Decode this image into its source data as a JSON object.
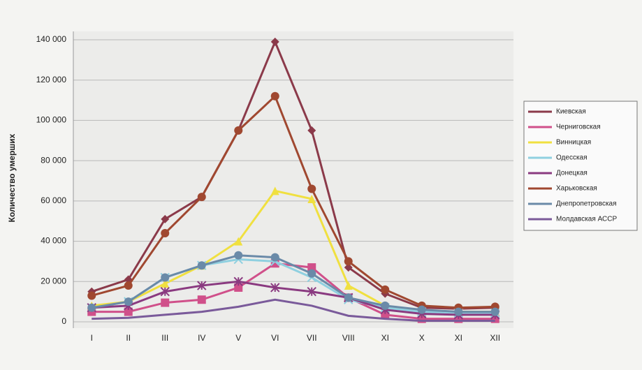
{
  "chart_data": {
    "type": "line",
    "y_label": "Количество умерших",
    "categories": [
      "I",
      "II",
      "III",
      "IV",
      "V",
      "VI",
      "VII",
      "VIII",
      "XI",
      "X",
      "XI",
      "XII"
    ],
    "ylim": [
      0,
      140000
    ],
    "yticks": [
      0,
      {
        "value": 20000,
        "label": "20 000"
      },
      {
        "value": 40000,
        "label": "40 000"
      },
      {
        "value": 60000,
        "label": "60 000"
      },
      {
        "value": 80000,
        "label": "80 000"
      },
      {
        "value": 100000,
        "label": "100 000"
      },
      {
        "value": 120000,
        "label": "120 000"
      },
      {
        "value": 140000,
        "label": "140 000"
      }
    ],
    "grid": true,
    "legend": "right",
    "series": [
      {
        "name": "Киевская",
        "color": "#8b3a4a",
        "marker": "diamond",
        "values": [
          15000,
          21000,
          51000,
          62000,
          95000,
          139000,
          95000,
          27000,
          14000,
          7000,
          6500,
          7000
        ]
      },
      {
        "name": "Черниговская",
        "color": "#d0508a",
        "marker": "square",
        "values": [
          5000,
          5000,
          9500,
          11000,
          17000,
          29000,
          27000,
          12000,
          3500,
          1500,
          1500,
          1500
        ]
      },
      {
        "name": "Винницкая",
        "color": "#f0e040",
        "marker": "triangle",
        "values": [
          8000,
          10000,
          19000,
          28000,
          40000,
          65000,
          61000,
          18000,
          8000,
          5000,
          5000,
          5000
        ]
      },
      {
        "name": "Одесская",
        "color": "#8fd0e0",
        "marker": "x",
        "values": [
          7000,
          10000,
          22000,
          28000,
          31000,
          30000,
          22000,
          11000,
          7000,
          5000,
          4500,
          4500
        ]
      },
      {
        "name": "Донецкая",
        "color": "#8a3a80",
        "marker": "star",
        "values": [
          7000,
          8000,
          15000,
          18000,
          20000,
          17000,
          15000,
          12000,
          6000,
          4000,
          3500,
          3500
        ]
      },
      {
        "name": "Харьковская",
        "color": "#a04830",
        "marker": "circle",
        "values": [
          13000,
          18000,
          44000,
          62000,
          95000,
          112000,
          66000,
          30000,
          16000,
          8000,
          7000,
          7500
        ]
      },
      {
        "name": "Днепропетровская",
        "color": "#6a8aa8",
        "marker": "circle",
        "values": [
          7000,
          10000,
          22000,
          28000,
          33000,
          32000,
          24000,
          12000,
          8000,
          6000,
          5000,
          5000
        ]
      },
      {
        "name": "Молдавская АССР",
        "color": "#7a5a9a",
        "marker": "none",
        "values": [
          1500,
          2000,
          3500,
          5000,
          7500,
          11000,
          8000,
          3000,
          1500,
          500,
          500,
          500
        ]
      }
    ]
  }
}
